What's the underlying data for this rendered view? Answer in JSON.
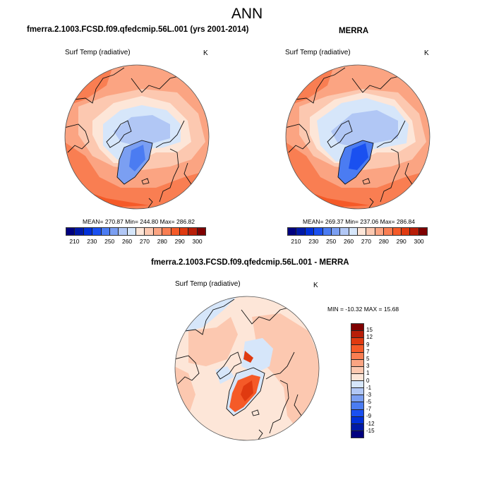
{
  "main_title": "ANN",
  "panels": [
    {
      "title": "fmerra.2.1003.FCSD.f09.qfedcmip.56L.001 (yrs 2001-2014)",
      "variable": "Surf Temp (radiative)",
      "units": "K",
      "stats": "MEAN= 270.87  Min= 244.80  Max= 286.82"
    },
    {
      "title": "MERRA",
      "variable": "Surf Temp (radiative)",
      "units": "K",
      "stats": "MEAN= 269.37  Min= 237.06  Max= 286.84"
    },
    {
      "title": "fmerra.2.1003.FCSD.f09.qfedcmip.56L.001 - MERRA",
      "variable": "Surf Temp (radiative)",
      "units": "K",
      "stats": "MIN = -10.32 MAX =  15.68"
    }
  ],
  "colors": {
    "abs_scale": [
      "#00007f",
      "#0019a6",
      "#0030d9",
      "#1a50f0",
      "#4b7cf2",
      "#7b9ff2",
      "#b1c7f5",
      "#d6e6fa",
      "#fde6d8",
      "#fcc8b0",
      "#fba482",
      "#f97e52",
      "#f55a28",
      "#e03a10",
      "#b81e08",
      "#7f0000"
    ],
    "diff_scale": [
      "#7f0000",
      "#b81e08",
      "#e03a10",
      "#f55a28",
      "#f97e52",
      "#fba482",
      "#fcc8b0",
      "#fde6d8",
      "#d6e6fa",
      "#b1c7f5",
      "#7b9ff2",
      "#4b7cf2",
      "#1a50f0",
      "#0030d9",
      "#0019a6",
      "#00007f"
    ]
  },
  "chart_data": [
    {
      "type": "heatmap",
      "title": "fmerra.2.1003.FCSD.f09.qfedcmip.56L.001 (yrs 2001-2014)",
      "projection": "north polar stereographic",
      "variable": "Surf Temp (radiative)",
      "units": "K",
      "mean": 270.87,
      "min": 244.8,
      "max": 286.82,
      "colorbar_labels": [
        "210",
        "230",
        "250",
        "260",
        "270",
        "280",
        "290",
        "300"
      ]
    },
    {
      "type": "heatmap",
      "title": "MERRA",
      "projection": "north polar stereographic",
      "variable": "Surf Temp (radiative)",
      "units": "K",
      "mean": 269.37,
      "min": 237.06,
      "max": 286.84,
      "colorbar_labels": [
        "210",
        "230",
        "250",
        "260",
        "270",
        "280",
        "290",
        "300"
      ]
    },
    {
      "type": "heatmap",
      "title": "fmerra.2.1003.FCSD.f09.qfedcmip.56L.001 - MERRA",
      "projection": "north polar stereographic",
      "variable": "Surf Temp (radiative)",
      "units": "K",
      "min": -10.32,
      "max": 15.68,
      "colorbar_labels": [
        "15",
        "12",
        "9",
        "7",
        "5",
        "3",
        "1",
        "0",
        "-1",
        "-3",
        "-5",
        "-7",
        "-9",
        "-12",
        "-15"
      ]
    }
  ]
}
